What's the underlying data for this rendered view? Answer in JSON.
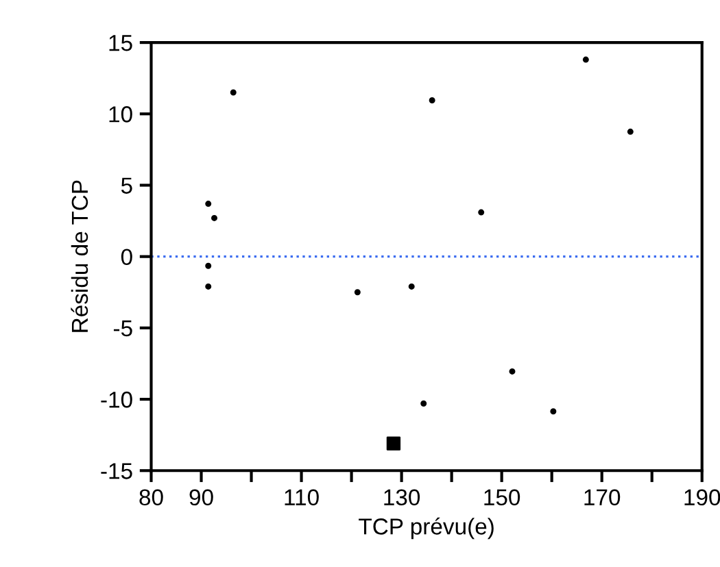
{
  "chart_data": {
    "type": "scatter",
    "xlabel": "TCP prévu(e)",
    "ylabel": "Résidu de TCP",
    "xlim": [
      80,
      190
    ],
    "ylim": [
      -15,
      15
    ],
    "xticks": [
      80,
      90,
      {
        "value": 100,
        "label": null
      },
      110,
      {
        "value": 120,
        "label": null
      },
      130,
      {
        "value": 140,
        "label": null
      },
      150,
      {
        "value": 160,
        "label": null
      },
      170,
      {
        "value": 180,
        "label": null
      },
      190
    ],
    "yticks": [
      -15,
      -10,
      -5,
      0,
      5,
      10,
      15
    ],
    "grid": false,
    "series": [
      {
        "color": "#000000",
        "marker": "circle",
        "x": [
          91.4,
          92.6,
          91.4,
          91.4,
          96.4,
          121.2,
          132.0,
          136.1,
          134.4,
          145.9,
          152.1,
          160.3,
          166.8,
          175.7
        ],
        "values": [
          3.7,
          2.7,
          -0.65,
          -2.1,
          11.5,
          -2.5,
          -2.1,
          10.95,
          -10.3,
          3.1,
          -8.05,
          -10.85,
          13.8,
          8.75
        ]
      },
      {
        "color": "#000000",
        "marker": "square",
        "x": [
          128.4
        ],
        "values": [
          -13.1
        ]
      }
    ],
    "ref_lines": [
      {
        "axis": "y",
        "value": 0,
        "color": "#3b6cf0",
        "line_style": "dotted"
      }
    ]
  }
}
